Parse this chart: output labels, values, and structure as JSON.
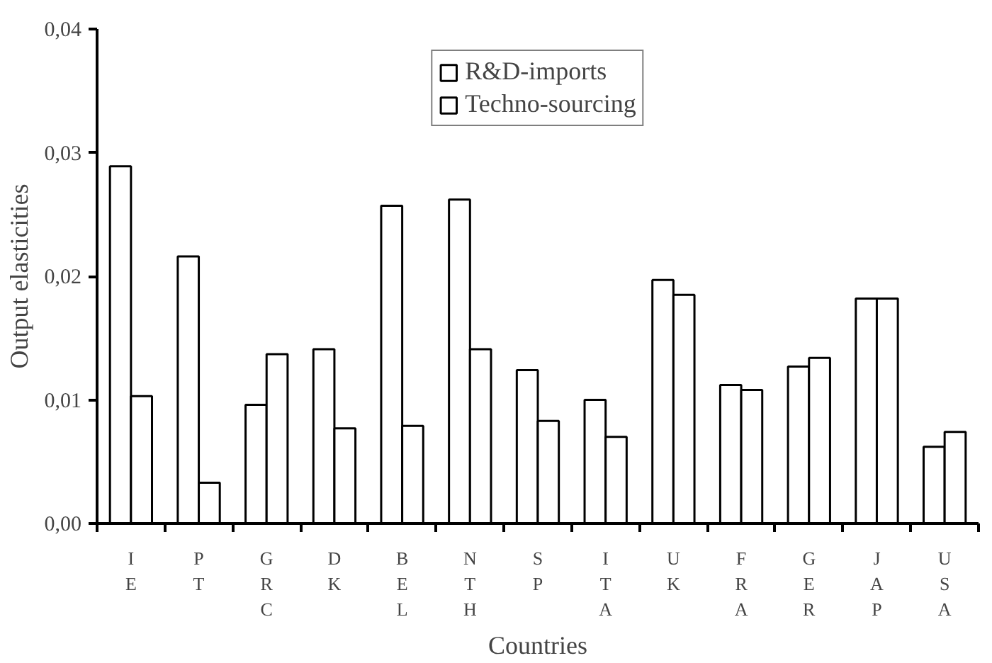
{
  "chart_data": {
    "type": "bar",
    "xlabel": "Countries",
    "ylabel": "Output elasticities",
    "categories": [
      "IE",
      "PT",
      "GRC",
      "DK",
      "BEL",
      "NTH",
      "SP",
      "ITA",
      "UK",
      "FRA",
      "GER",
      "JAP",
      "USA"
    ],
    "series": [
      {
        "name": "R&D-imports",
        "color": "#ffffff",
        "values": [
          0.0289,
          0.0216,
          0.0096,
          0.0141,
          0.0257,
          0.0262,
          0.0124,
          0.01,
          0.0197,
          0.0112,
          0.0127,
          0.0182,
          0.0062
        ]
      },
      {
        "name": "Techno-sourcing",
        "color": "#ffffff",
        "values": [
          0.0103,
          0.0033,
          0.0137,
          0.0077,
          0.0079,
          0.0141,
          0.0083,
          0.007,
          0.0185,
          0.0108,
          0.0134,
          0.0182,
          0.0074
        ]
      }
    ],
    "ylim": [
      0,
      0.04
    ],
    "yticks": [
      {
        "value": 0,
        "label": "0,00"
      },
      {
        "value": 0.01,
        "label": "0,01"
      },
      {
        "value": 0.02,
        "label": "0,02"
      },
      {
        "value": 0.03,
        "label": "0,03"
      },
      {
        "value": 0.04,
        "label": "0,04"
      }
    ],
    "grid": false,
    "legend": "top"
  }
}
